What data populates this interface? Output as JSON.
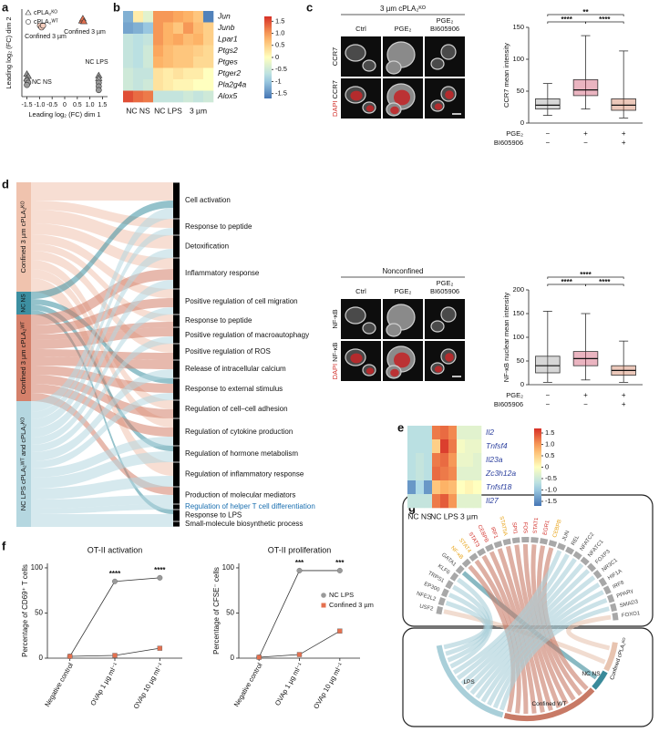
{
  "panel_labels": [
    "a",
    "b",
    "c",
    "d",
    "e",
    "f",
    "g"
  ],
  "chart_data": [
    {
      "type": "scatter",
      "xlabel": "Leading log₂ (FC) dim 1",
      "ylabel": "Leading log₂ (FC) dim 2",
      "xlim": [
        -1.7,
        1.7
      ],
      "ylim": [
        -1.0,
        1.4
      ],
      "xticks": [
        -1.5,
        {
          "value": -1,
          "label": "-1.0"
        },
        -0.5,
        0,
        0.5,
        {
          "value": 1,
          "label": "1.0"
        },
        1.5
      ],
      "annotations": [
        "Confined 3 µm",
        "Confined 3 µm",
        "NC NS",
        "NC LPS"
      ],
      "series": [
        {
          "name": "cPLA₂ᴷᴼ",
          "marker": "triangle",
          "x": [
            0.68,
            0.72,
            0.76,
            -1.5,
            -1.45,
            -1.5,
            1.35,
            1.35
          ],
          "y": [
            1.08,
            1.14,
            1.06,
            -0.38,
            -0.44,
            -0.5,
            -0.42,
            -0.5
          ],
          "colors": [
            "#e4704f",
            "#e4704f",
            "#e4704f",
            "#9a9a9a",
            "#9a9a9a",
            "#9a9a9a",
            "#9a9a9a",
            "#9a9a9a"
          ]
        },
        {
          "name": "cPLA₂ᵂᵀ",
          "marker": "circle",
          "x": [
            -0.98,
            -0.92,
            -0.86,
            -1.5,
            -1.45,
            -1.5,
            1.35,
            1.35,
            1.35
          ],
          "y": [
            0.95,
            0.9,
            0.95,
            -0.56,
            -0.62,
            -0.68,
            -0.62,
            -0.72,
            -0.82
          ],
          "colors": [
            "#f6cdbd",
            "#f6cdbd",
            "#f6cdbd",
            "#9a9a9a",
            "#9a9a9a",
            "#9a9a9a",
            "#9a9a9a",
            "#9a9a9a",
            "#9a9a9a"
          ]
        }
      ]
    },
    {
      "type": "heatmap",
      "rows": [
        "Jun",
        "Junb",
        "Lpar1",
        "Ptgs2",
        "Ptges",
        "Ptger2",
        "Pla2g4a",
        "Alox5"
      ],
      "column_groups": [
        "NC NS",
        "NC LPS",
        "3 µm"
      ],
      "clim": [
        -1.7,
        1.7
      ],
      "label_color": "#111111",
      "values": [
        [
          -1.2,
          0.2,
          -0.3,
          1.0,
          1.0,
          0.9,
          0.8,
          0.6,
          -1.6
        ],
        [
          -1.3,
          -1.2,
          -1.0,
          1.0,
          0.8,
          0.6,
          1.0,
          0.7,
          0.5
        ],
        [
          -0.6,
          -0.7,
          -0.6,
          1.0,
          0.8,
          0.9,
          0.7,
          0.8,
          0.5
        ],
        [
          -0.6,
          -0.7,
          -0.5,
          0.9,
          0.7,
          0.6,
          0.6,
          0.5,
          0.4
        ],
        [
          -0.6,
          -0.7,
          -0.5,
          0.8,
          0.7,
          0.6,
          0.6,
          0.4,
          0.4
        ],
        [
          -0.5,
          -0.6,
          -0.6,
          0.3,
          0.2,
          0.3,
          0.2,
          0.2,
          0.0
        ],
        [
          -0.5,
          -0.6,
          -0.5,
          0.3,
          0.2,
          0.1,
          0.1,
          0.0,
          0.0
        ],
        [
          1.5,
          1.3,
          1.2,
          -0.6,
          -0.6,
          -0.6,
          -0.5,
          -0.6,
          -0.5
        ]
      ],
      "cticks": [
        1.5,
        {
          "value": 1,
          "label": "1.0"
        },
        0.5,
        0,
        -0.5,
        -1,
        -1.5
      ]
    },
    {
      "type": "box",
      "ylabel": "CCR7 mean intensity",
      "ylim": [
        0,
        150
      ],
      "yticks": [
        0,
        50,
        100,
        150
      ],
      "condition_labels": [
        "PGE₂",
        "BI605906"
      ],
      "conditions": [
        [
          "−",
          "+",
          "+"
        ],
        [
          "−",
          "−",
          "+"
        ]
      ],
      "colors": [
        "#8c8c8c",
        "#c2284a",
        "#c8603a"
      ],
      "significance": [
        "**",
        "****",
        "****"
      ],
      "boxes": [
        {
          "min": 12,
          "q1": 22,
          "median": 28,
          "q3": 38,
          "max": 62
        },
        {
          "min": 22,
          "q1": 43,
          "median": 52,
          "q3": 68,
          "max": 137
        },
        {
          "min": 8,
          "q1": 20,
          "median": 28,
          "q3": 38,
          "max": 113
        }
      ]
    },
    {
      "type": "box",
      "ylabel": "NF-κB nuclear mean intensity",
      "ylim": [
        0,
        200
      ],
      "yticks": [
        0,
        50,
        100,
        150,
        200
      ],
      "condition_labels": [
        "PGE₂",
        "BI605906"
      ],
      "conditions": [
        [
          "−",
          "+",
          "+"
        ],
        [
          "−",
          "−",
          "+"
        ]
      ],
      "colors": [
        "#8c8c8c",
        "#c2284a",
        "#c8603a"
      ],
      "significance": [
        "****",
        "****",
        "****"
      ],
      "boxes": [
        {
          "min": 5,
          "q1": 25,
          "median": 40,
          "q3": 60,
          "max": 155
        },
        {
          "min": 10,
          "q1": 40,
          "median": 55,
          "q3": 70,
          "max": 150
        },
        {
          "min": 5,
          "q1": 20,
          "median": 30,
          "q3": 40,
          "max": 92
        }
      ]
    },
    {
      "type": "heatmap",
      "rows": [
        "Il2",
        "Tnfsf4",
        "Il23a",
        "Zc3h12a",
        "Tnfsf18",
        "Il27"
      ],
      "column_groups": [
        "NC NS",
        "NC LPS",
        "3 µm"
      ],
      "clim": [
        -1.7,
        1.7
      ],
      "label_color": "#2b3f9e",
      "values": [
        [
          -0.7,
          -0.7,
          -0.7,
          1.2,
          1.3,
          1.1,
          -0.3,
          -0.3,
          -0.3
        ],
        [
          -0.7,
          -0.7,
          -0.7,
          0.5,
          1.6,
          1.2,
          -0.1,
          -0.2,
          -0.2
        ],
        [
          -0.7,
          -0.6,
          -0.7,
          1.2,
          1.3,
          1.0,
          -0.2,
          -0.2,
          -0.3
        ],
        [
          -0.7,
          -0.6,
          -0.7,
          1.3,
          1.2,
          1.1,
          -0.3,
          -0.3,
          -0.3
        ],
        [
          -1.4,
          -0.8,
          -1.4,
          0.6,
          0.8,
          0.7,
          0.0,
          0.1,
          0.0
        ],
        [
          -0.6,
          -0.6,
          -0.6,
          1.2,
          1.4,
          1.0,
          -0.3,
          -0.3,
          -0.3
        ]
      ],
      "cticks": [
        1.5,
        {
          "value": 1,
          "label": "1.0"
        },
        0.5,
        0,
        -0.5,
        {
          "value": -1,
          "label": "-1.0"
        },
        -1.5
      ]
    },
    {
      "type": "line",
      "title": "OT-II activation",
      "ylabel": "Percentage of CD69⁺ T cells",
      "ylim": [
        0,
        105
      ],
      "yticks": [
        0,
        50,
        100
      ],
      "categories": [
        "Negative control",
        "OVAp 1 µg ml⁻¹",
        "OVAp 10 µg ml⁻¹"
      ],
      "significance": [
        "****",
        "****"
      ],
      "series": [
        {
          "color": "#9a9a9a",
          "marker": "circle",
          "values": [
            2,
            85,
            89
          ]
        },
        {
          "color": "#e4704f",
          "marker": "square",
          "values": [
            2,
            3,
            11
          ]
        }
      ]
    },
    {
      "type": "line",
      "title": "OT-II proliferation",
      "ylabel": "Percentage of CFSE⁻ cells",
      "ylim": [
        0,
        105
      ],
      "yticks": [
        0,
        50,
        100
      ],
      "categories": [
        "Negative control",
        "OVAp 1 µg ml⁻¹",
        "OVAp 10 µg ml⁻¹"
      ],
      "significance": [
        "***",
        "***"
      ],
      "legend": "right",
      "series": [
        {
          "name": "NC LPS",
          "color": "#9a9a9a",
          "marker": "circle",
          "values": [
            1,
            97,
            97
          ]
        },
        {
          "name": "Confined 3 µm",
          "color": "#e4704f",
          "marker": "square",
          "values": [
            1,
            4,
            30
          ]
        }
      ]
    }
  ],
  "micrographs": [
    {
      "title": "3 µm cPLA₂ᴷᴼ",
      "columns": [
        [
          "Ctrl"
        ],
        [
          "PGE₂"
        ],
        [
          "PGE₂",
          "BI605906"
        ]
      ],
      "rows": [
        [
          "CCR7"
        ],
        [
          "DAPI",
          "CCR7"
        ]
      ]
    },
    {
      "title": "Nonconfined",
      "columns": [
        [
          "Ctrl"
        ],
        [
          "PGE₂"
        ],
        [
          "PGE₂",
          "BI605906"
        ]
      ],
      "rows": [
        [
          "NF-κB"
        ],
        [
          "DAPI",
          "NF-κB"
        ]
      ]
    }
  ],
  "sankey": {
    "sources": [
      {
        "label": "Confined 3 µm cPLA₂ᴷᴼ",
        "color": "#f0c3ae"
      },
      {
        "label": "NC NS",
        "color": "#3d8fa1"
      },
      {
        "label": "Confined 3 µm cPLA₂ᵂᵀ",
        "color": "#d4806a"
      },
      {
        "label": "NC LPS cPLA₂ᵂᵀ and cPLA₂ᴷᴼ",
        "color": "#b5d7e0"
      }
    ],
    "targets": [
      {
        "label": "Cell activation",
        "color": "#111111"
      },
      {
        "label": "Response to peptide",
        "color": "#111111"
      },
      {
        "label": "Detoxification",
        "color": "#111111"
      },
      {
        "label": "Inflammatory response",
        "color": "#111111"
      },
      {
        "label": "Positive regulation of cell migration",
        "color": "#111111"
      },
      {
        "label": "Response to peptide",
        "color": "#111111"
      },
      {
        "label": "Positive regulation of macroautophagy",
        "color": "#111111"
      },
      {
        "label": "Positive regulation of ROS",
        "color": "#111111"
      },
      {
        "label": "Release of intracellular calcium",
        "color": "#111111"
      },
      {
        "label": "Response to external stimulus",
        "color": "#111111"
      },
      {
        "label": "Regulation of cell–cell adhesion",
        "color": "#111111"
      },
      {
        "label": "Regulation of cytokine production",
        "color": "#111111"
      },
      {
        "label": "Regulation of hormone metabolism",
        "color": "#111111"
      },
      {
        "label": "Regulation of inflammatory response",
        "color": "#111111"
      },
      {
        "label": "Production of molecular mediators",
        "color": "#111111"
      },
      {
        "label": "Regulation of helper T cell differentiation",
        "color": "#1a6fb0"
      },
      {
        "label": "Response to LPS",
        "color": "#111111"
      },
      {
        "label": "Small-molecule biosynthetic process",
        "color": "#111111"
      }
    ]
  },
  "chord": {
    "tfs": [
      {
        "label": "USF2",
        "color": "#444444"
      },
      {
        "label": "NFE2L2",
        "color": "#444444"
      },
      {
        "label": "EP300",
        "color": "#444444"
      },
      {
        "label": "TRPS1",
        "color": "#444444"
      },
      {
        "label": "KLF6",
        "color": "#444444"
      },
      {
        "label": "GATA1",
        "color": "#444444"
      },
      {
        "label": "NF-κB",
        "color": "#e8a317"
      },
      {
        "label": "STAT4",
        "color": "#e8a317"
      },
      {
        "label": "STAT3",
        "color": "#d2312b"
      },
      {
        "label": "CEBPB",
        "color": "#d2312b"
      },
      {
        "label": "IRF1",
        "color": "#d2312b"
      },
      {
        "label": "STAT5A",
        "color": "#e8a317"
      },
      {
        "label": "SPI1",
        "color": "#d2312b"
      },
      {
        "label": "FOS",
        "color": "#d2312b"
      },
      {
        "label": "STAT1",
        "color": "#d2312b"
      },
      {
        "label": "EGR1",
        "color": "#d2312b"
      },
      {
        "label": "CEBPB",
        "color": "#e8a317"
      },
      {
        "label": "JUN",
        "color": "#444444"
      },
      {
        "label": "REL",
        "color": "#444444"
      },
      {
        "label": "NFATC2",
        "color": "#444444"
      },
      {
        "label": "NFATC1",
        "color": "#444444"
      },
      {
        "label": "FOXP3",
        "color": "#444444"
      },
      {
        "label": "NR3C1",
        "color": "#444444"
      },
      {
        "label": "HIF1A",
        "color": "#444444"
      },
      {
        "label": "IRF8",
        "color": "#444444"
      },
      {
        "label": "PPARγ",
        "color": "#444444"
      },
      {
        "label": "SMAD3",
        "color": "#444444"
      },
      {
        "label": "FOXO1",
        "color": "#444444"
      }
    ],
    "groups": [
      {
        "label": "LPS",
        "color": "#a9cfd9"
      },
      {
        "label": "Confined WT",
        "color": "#c87a66"
      },
      {
        "label": "NC NS",
        "color": "#3a8a9a"
      },
      {
        "label": "Confined cPLA₂ᴷᴼ",
        "color": "#e8c4b0"
      }
    ]
  }
}
